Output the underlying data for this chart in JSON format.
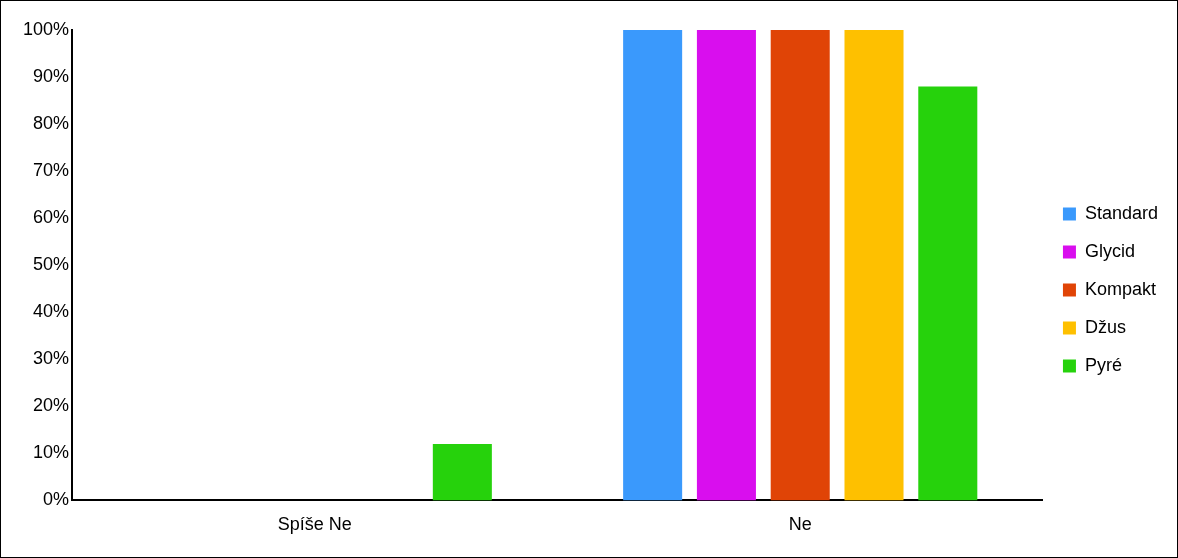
{
  "chart_data": {
    "type": "bar",
    "categories": [
      "Spíše Ne",
      "Ne"
    ],
    "series": [
      {
        "name": "Standard",
        "color": "#3a99fc",
        "values": [
          0,
          100
        ]
      },
      {
        "name": "Glycid",
        "color": "#d90eee",
        "values": [
          0,
          100
        ]
      },
      {
        "name": "Kompakt",
        "color": "#e04406",
        "values": [
          0,
          100
        ]
      },
      {
        "name": "Džus",
        "color": "#fec000",
        "values": [
          0,
          100
        ]
      },
      {
        "name": "Pyré",
        "color": "#26d20c",
        "values": [
          12,
          88
        ]
      }
    ],
    "ylim": [
      0,
      100
    ],
    "yticks": [
      {
        "value": 0,
        "label": "0%"
      },
      {
        "value": 10,
        "label": "10%"
      },
      {
        "value": 20,
        "label": "20%"
      },
      {
        "value": 30,
        "label": "30%"
      },
      {
        "value": 40,
        "label": "40%"
      },
      {
        "value": 50,
        "label": "50%"
      },
      {
        "value": 60,
        "label": "60%"
      },
      {
        "value": 70,
        "label": "70%"
      },
      {
        "value": 80,
        "label": "80%"
      },
      {
        "value": 90,
        "label": "90%"
      },
      {
        "value": 100,
        "label": "100%"
      }
    ],
    "grid": false,
    "legend": "right"
  }
}
